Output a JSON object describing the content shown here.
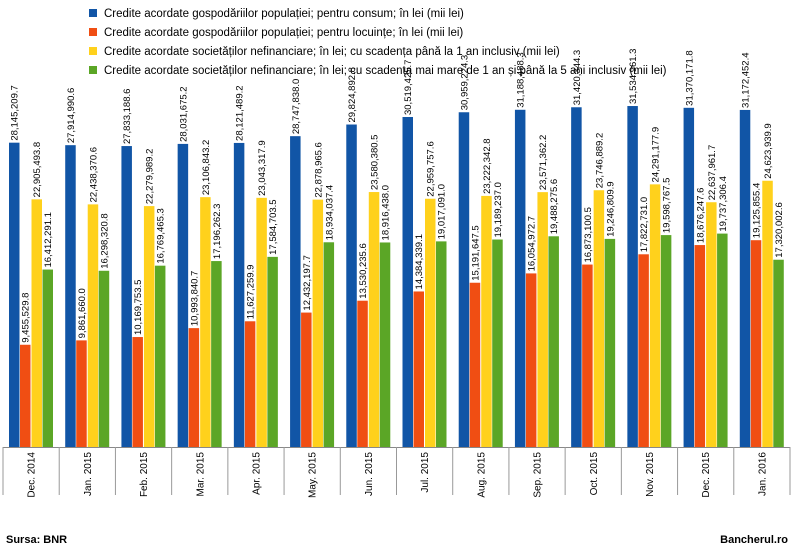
{
  "chart_data": {
    "type": "bar",
    "categories": [
      "Dec. 2014",
      "Jan. 2015",
      "Feb. 2015",
      "Mar. 2015",
      "Apr. 2015",
      "May. 2015",
      "Jun. 2015",
      "Jul. 2015",
      "Aug. 2015",
      "Sep. 2015",
      "Oct. 2015",
      "Nov. 2015",
      "Dec. 2015",
      "Jan. 2016"
    ],
    "series": [
      {
        "name": "Credite acordate gospodăriilor populației; pentru consum; în lei (mii lei)",
        "color": "#1155A6",
        "values": [
          28145209.7,
          27914990.6,
          27833188.6,
          28031675.2,
          28121489.2,
          28747838.0,
          29824892.8,
          30519425.7,
          30959224.3,
          31188488.3,
          31420344.3,
          31534961.3,
          31370171.8,
          31172452.4
        ],
        "labels": [
          "28,145,209.7",
          "27,914,990.6",
          "27,833,188.6",
          "28,031,675.2",
          "28,121,489.2",
          "28,747,838.0",
          "29,824,892.8",
          "30,519,425.7",
          "30,959,224.3",
          "31,188,488.3",
          "31,420,344.3",
          "31,534,961.3",
          "31,370,171.8",
          "31,172,452.4"
        ]
      },
      {
        "name": "Credite acordate gospodăriilor populației; pentru locuințe; în lei (mii lei)",
        "color": "#F04E13",
        "values": [
          9455529.8,
          9861660.0,
          10169753.5,
          10993840.7,
          11627259.9,
          12432197.7,
          13530235.6,
          14384339.1,
          15191647.5,
          16054972.7,
          16873100.5,
          17822731.0,
          18676247.6,
          19125855.4
        ],
        "labels": [
          "9,455,529.8",
          "9,861,660.0",
          "10,169,753.5",
          "10,993,840.7",
          "11,627,259.9",
          "12,432,197.7",
          "13,530,235.6",
          "14,384,339.1",
          "15,191,647.5",
          "16,054,972.7",
          "16,873,100.5",
          "17,822,731.0",
          "18,676,247.6",
          "19,125,855.4"
        ]
      },
      {
        "name": "Credite acordate societăților nefinanciare; în lei; cu scadența până la 1 an inclusiv (mii lei)",
        "color": "#FFD11C",
        "values": [
          22905493.8,
          22438370.6,
          22279989.2,
          23106843.2,
          23043317.9,
          22878965.6,
          23580380.5,
          22959757.6,
          23222342.8,
          23571362.2,
          23746889.2,
          24291177.9,
          22637961.7,
          24623939.9
        ],
        "labels": [
          "22,905,493.8",
          "22,438,370.6",
          "22,279,989.2",
          "23,106,843.2",
          "23,043,317.9",
          "22,878,965.6",
          "23,580,380.5",
          "22,959,757.6",
          "23,222,342.8",
          "23,571,362.2",
          "23,746,889.2",
          "24,291,177.9",
          "22,637,961.7",
          "24,623,939.9"
        ]
      },
      {
        "name": "Credite acordate societăților nefinanciare; în lei; cu scadența mai mare de 1 an și până la 5 ani inclusiv (mii lei)",
        "color": "#5BA626",
        "values": [
          16412291.1,
          16298320.8,
          16769465.3,
          17196262.3,
          17584703.5,
          18934037.4,
          18916438.0,
          19017091.0,
          19189237.0,
          19488275.6,
          19246809.9,
          19598767.5,
          19737306.4,
          17320002.6
        ],
        "labels": [
          "16,412,291.1",
          "16,298,320.8",
          "16,769,465.3",
          "17,196,262.3",
          "17,584,703.5",
          "18,934,037.4",
          "18,916,438.0",
          "19,017,091.0",
          "19,189,237.0",
          "19,488,275.6",
          "19,246,809.9",
          "19,598,767.5",
          "19,737,306.4",
          "17,320,002.6"
        ]
      }
    ],
    "ylim": [
      0,
      40000000
    ],
    "legend_position": "top-left",
    "grid": false
  },
  "footer": {
    "source": "Sursa: BNR",
    "brand": "Bancherul.ro"
  }
}
